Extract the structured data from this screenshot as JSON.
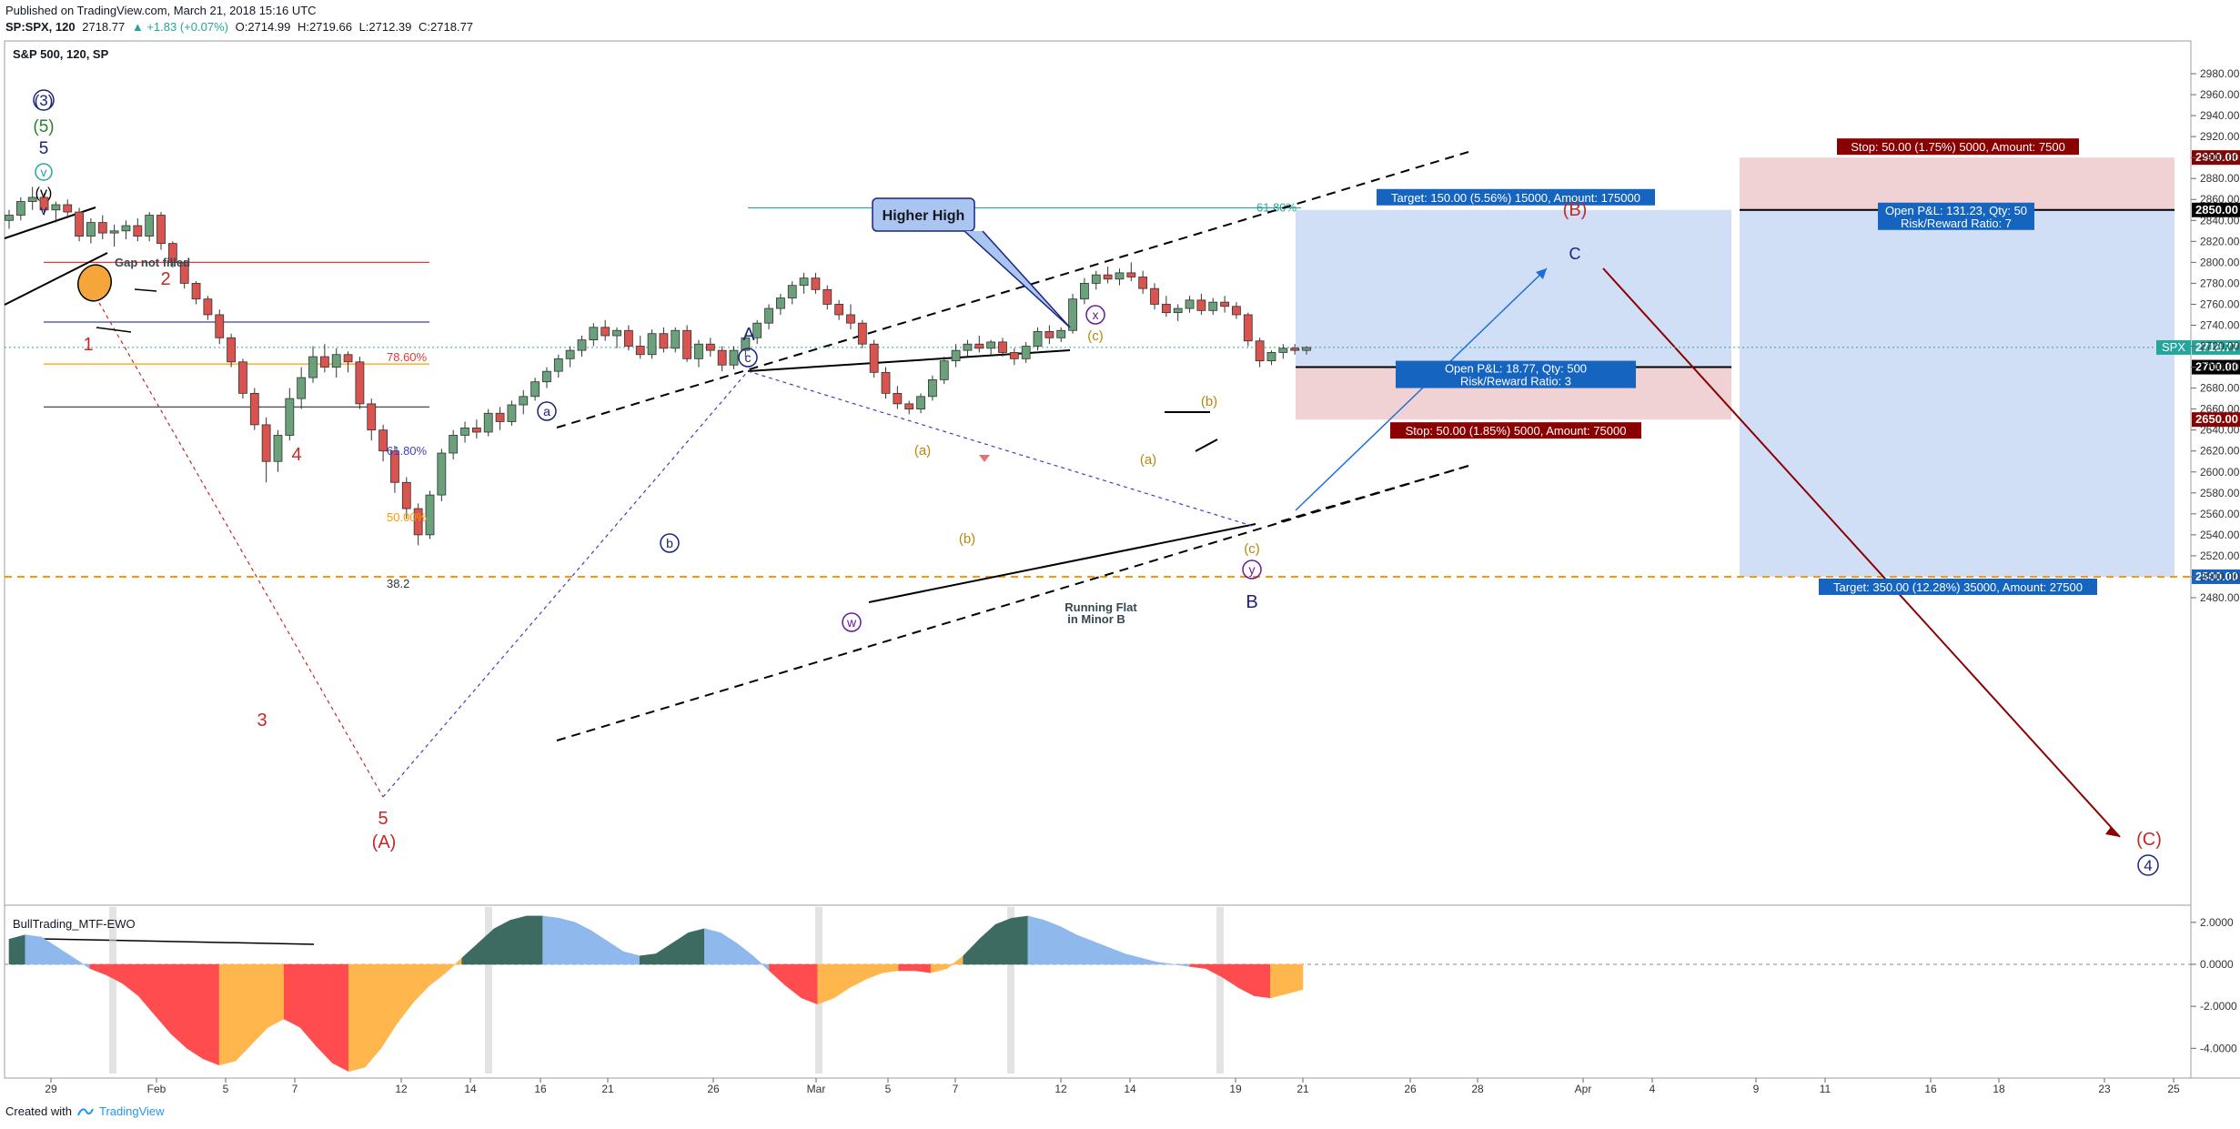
{
  "header": {
    "published": "Published on TradingView.com, March 21, 2018 15:16 UTC",
    "symbol": "SP:SPX, 120",
    "change": "2718.77",
    "change_delta": "▲ +1.83 (+0.07%)",
    "open": "O:2714.99",
    "high": "H:2719.66",
    "low": "L:2712.39",
    "close": "C:2718.77"
  },
  "chart_title": "S&P 500, 120, SP",
  "footer": {
    "created_with": "Created with",
    "brand": "TradingView"
  },
  "price_axis": {
    "ticks": [
      "2980.00",
      "2960.00",
      "2940.00",
      "2920.00",
      "2900.00",
      "2880.00",
      "2860.00",
      "2840.00",
      "2820.00",
      "2800.00",
      "2780.00",
      "2760.00",
      "2740.00",
      "2720.00",
      "2700.00",
      "2680.00",
      "2660.00",
      "2640.00",
      "2620.00",
      "2600.00",
      "2580.00",
      "2560.00",
      "2540.00",
      "2520.00",
      "2500.00",
      "2480.00"
    ],
    "highlights": [
      {
        "label": "2900.00",
        "price": 2900,
        "color": "#8b0000"
      },
      {
        "label": "2850.00",
        "price": 2850,
        "color": "#000000"
      },
      {
        "label": "SPX",
        "value": "2718.77",
        "price": 2718.77,
        "color": "#26a69a"
      },
      {
        "label": "2700.00",
        "price": 2700,
        "color": "#000000"
      },
      {
        "label": "2650.00",
        "price": 2650,
        "color": "#8b0000"
      },
      {
        "label": "2500.00",
        "price": 2500,
        "color": "#1565c0"
      }
    ]
  },
  "time_axis": [
    "29",
    "Feb",
    "5",
    "7",
    "12",
    "14",
    "16",
    "21",
    "26",
    "Mar",
    "5",
    "7",
    "12",
    "14",
    "19",
    "21",
    "26",
    "28",
    "Apr",
    "4",
    "9",
    "11",
    "16",
    "18",
    "23",
    "25"
  ],
  "indicator": {
    "name": "BullTrading_MTF-EWO",
    "ticks": [
      "2.0000",
      "0.0000",
      "-2.0000",
      "-4.0000"
    ]
  },
  "chart_data": {
    "type": "candlestick",
    "title": "S&P 500, 120, SP",
    "ylim": [
      2470,
      2990
    ],
    "last_price": 2718.77,
    "candles_ohlc": [
      [
        2840,
        2850,
        2832,
        2845
      ],
      [
        2845,
        2862,
        2840,
        2858
      ],
      [
        2858,
        2872,
        2850,
        2862
      ],
      [
        2862,
        2866,
        2845,
        2850
      ],
      [
        2850,
        2858,
        2838,
        2855
      ],
      [
        2855,
        2860,
        2842,
        2848
      ],
      [
        2848,
        2852,
        2820,
        2825
      ],
      [
        2825,
        2842,
        2818,
        2838
      ],
      [
        2838,
        2845,
        2822,
        2828
      ],
      [
        2828,
        2836,
        2815,
        2830
      ],
      [
        2830,
        2840,
        2822,
        2835
      ],
      [
        2835,
        2842,
        2820,
        2825
      ],
      [
        2825,
        2848,
        2820,
        2845
      ],
      [
        2845,
        2848,
        2812,
        2818
      ],
      [
        2818,
        2820,
        2795,
        2800
      ],
      [
        2800,
        2802,
        2775,
        2780
      ],
      [
        2780,
        2782,
        2760,
        2765
      ],
      [
        2765,
        2768,
        2745,
        2750
      ],
      [
        2750,
        2755,
        2722,
        2728
      ],
      [
        2728,
        2732,
        2700,
        2705
      ],
      [
        2705,
        2708,
        2670,
        2675
      ],
      [
        2675,
        2680,
        2640,
        2645
      ],
      [
        2645,
        2652,
        2590,
        2610
      ],
      [
        2610,
        2640,
        2600,
        2635
      ],
      [
        2635,
        2680,
        2630,
        2670
      ],
      [
        2670,
        2700,
        2660,
        2690
      ],
      [
        2690,
        2720,
        2685,
        2710
      ],
      [
        2710,
        2722,
        2695,
        2700
      ],
      [
        2700,
        2718,
        2690,
        2712
      ],
      [
        2712,
        2715,
        2695,
        2705
      ],
      [
        2705,
        2710,
        2660,
        2665
      ],
      [
        2665,
        2670,
        2630,
        2640
      ],
      [
        2640,
        2645,
        2610,
        2620
      ],
      [
        2620,
        2625,
        2580,
        2590
      ],
      [
        2590,
        2595,
        2555,
        2565
      ],
      [
        2565,
        2570,
        2530,
        2540
      ],
      [
        2540,
        2582,
        2536,
        2578
      ],
      [
        2578,
        2622,
        2572,
        2618
      ],
      [
        2618,
        2640,
        2612,
        2635
      ],
      [
        2635,
        2648,
        2628,
        2642
      ],
      [
        2642,
        2650,
        2632,
        2638
      ],
      [
        2638,
        2660,
        2634,
        2656
      ],
      [
        2656,
        2662,
        2640,
        2648
      ],
      [
        2648,
        2668,
        2644,
        2664
      ],
      [
        2664,
        2678,
        2655,
        2672
      ],
      [
        2672,
        2690,
        2668,
        2686
      ],
      [
        2686,
        2700,
        2680,
        2696
      ],
      [
        2696,
        2712,
        2690,
        2708
      ],
      [
        2708,
        2720,
        2700,
        2716
      ],
      [
        2716,
        2730,
        2710,
        2726
      ],
      [
        2726,
        2742,
        2720,
        2738
      ],
      [
        2738,
        2745,
        2725,
        2730
      ],
      [
        2730,
        2738,
        2718,
        2735
      ],
      [
        2735,
        2740,
        2716,
        2720
      ],
      [
        2720,
        2730,
        2708,
        2712
      ],
      [
        2712,
        2736,
        2708,
        2732
      ],
      [
        2732,
        2738,
        2714,
        2718
      ],
      [
        2718,
        2738,
        2714,
        2735
      ],
      [
        2735,
        2740,
        2705,
        2708
      ],
      [
        2708,
        2726,
        2700,
        2722
      ],
      [
        2722,
        2728,
        2710,
        2716
      ],
      [
        2716,
        2720,
        2696,
        2702
      ],
      [
        2702,
        2720,
        2698,
        2716
      ],
      [
        2716,
        2732,
        2710,
        2728
      ],
      [
        2728,
        2745,
        2722,
        2742
      ],
      [
        2742,
        2760,
        2736,
        2756
      ],
      [
        2756,
        2770,
        2750,
        2766
      ],
      [
        2766,
        2782,
        2760,
        2778
      ],
      [
        2778,
        2790,
        2770,
        2785
      ],
      [
        2785,
        2790,
        2770,
        2774
      ],
      [
        2774,
        2778,
        2755,
        2760
      ],
      [
        2760,
        2764,
        2745,
        2750
      ],
      [
        2750,
        2760,
        2736,
        2742
      ],
      [
        2742,
        2745,
        2718,
        2722
      ],
      [
        2722,
        2726,
        2690,
        2695
      ],
      [
        2695,
        2700,
        2670,
        2675
      ],
      [
        2675,
        2682,
        2660,
        2665
      ],
      [
        2665,
        2668,
        2655,
        2660
      ],
      [
        2660,
        2675,
        2656,
        2672
      ],
      [
        2672,
        2692,
        2668,
        2688
      ],
      [
        2688,
        2710,
        2684,
        2706
      ],
      [
        2706,
        2722,
        2700,
        2716
      ],
      [
        2716,
        2726,
        2710,
        2722
      ],
      [
        2722,
        2730,
        2714,
        2718
      ],
      [
        2718,
        2726,
        2712,
        2724
      ],
      [
        2724,
        2728,
        2710,
        2714
      ],
      [
        2714,
        2718,
        2702,
        2708
      ],
      [
        2708,
        2724,
        2704,
        2720
      ],
      [
        2720,
        2738,
        2716,
        2734
      ],
      [
        2734,
        2740,
        2722,
        2728
      ],
      [
        2728,
        2738,
        2724,
        2735
      ],
      [
        2735,
        2770,
        2732,
        2765
      ],
      [
        2765,
        2785,
        2760,
        2780
      ],
      [
        2780,
        2792,
        2774,
        2788
      ],
      [
        2788,
        2796,
        2780,
        2784
      ],
      [
        2784,
        2794,
        2778,
        2790
      ],
      [
        2790,
        2800,
        2782,
        2786
      ],
      [
        2786,
        2792,
        2770,
        2775
      ],
      [
        2775,
        2780,
        2755,
        2760
      ],
      [
        2760,
        2768,
        2748,
        2752
      ],
      [
        2752,
        2760,
        2744,
        2756
      ],
      [
        2756,
        2768,
        2752,
        2764
      ],
      [
        2764,
        2770,
        2750,
        2754
      ],
      [
        2754,
        2766,
        2750,
        2762
      ],
      [
        2762,
        2768,
        2752,
        2758
      ],
      [
        2758,
        2762,
        2746,
        2750
      ],
      [
        2750,
        2752,
        2720,
        2725
      ],
      [
        2725,
        2728,
        2700,
        2706
      ],
      [
        2706,
        2716,
        2702,
        2714
      ],
      [
        2714,
        2722,
        2708,
        2718
      ],
      [
        2718,
        2722,
        2712,
        2716
      ],
      [
        2716,
        2720,
        2712,
        2718.77
      ]
    ],
    "annotations": [
      "(3)",
      "(5)",
      "5",
      "(v)",
      "v",
      "1",
      "2",
      "3",
      "4",
      "5",
      "(A)",
      "Gap not filled",
      "78.60%",
      "61.80%",
      "50.00%",
      "38.2",
      "A",
      "c",
      "a",
      "b",
      "w",
      "x",
      "y",
      "B",
      "(a)",
      "(b)",
      "(c)",
      "Higher High",
      "Running Flat",
      "in Minor B",
      "(B)",
      "C",
      "(C)",
      "4"
    ],
    "fibonacci": [
      {
        "level": "78.60%",
        "price": 2800,
        "color": "#e53935"
      },
      {
        "level": "61.80%",
        "price": 2743,
        "color": "#3f3fbf"
      },
      {
        "level": "50.00%",
        "price": 2703,
        "color": "#ff9800"
      },
      {
        "level": "38.2",
        "price": 2662,
        "color": "#333333"
      },
      {
        "level": "61.80%",
        "price": 2852,
        "color": "#26a69a"
      }
    ],
    "long_position": {
      "entry": 2700,
      "target": 2850,
      "stop": 2650,
      "target_label": "Target: 150.00 (5.56%) 15000, Amount: 175000",
      "pnl_label": "Open P&L: 18.77, Qty: 500",
      "rr_label": "Risk/Reward Ratio: 3",
      "stop_label": "Stop: 50.00 (1.85%) 5000, Amount: 75000"
    },
    "short_position": {
      "entry": 2850,
      "target": 2500,
      "stop": 2900,
      "stop_label": "Stop: 50.00 (1.75%) 5000, Amount: 7500",
      "pnl_label": "Open P&L: 131.23, Qty: 50",
      "rr_label": "Risk/Reward Ratio: 7",
      "target_label": "Target: 350.00 (12.28%) 35000, Amount: 27500"
    },
    "support_level": 2500,
    "indicator_series_name": "BullTrading_MTF-EWO",
    "indicator_ylim": [
      -5.2,
      2.6
    ],
    "indicator_values": [
      1.2,
      1.4,
      1.3,
      0.8,
      0.3,
      -0.2,
      -0.5,
      -0.9,
      -1.5,
      -2.4,
      -3.3,
      -4.0,
      -4.5,
      -4.8,
      -4.6,
      -3.8,
      -3.0,
      -2.6,
      -3.0,
      -3.9,
      -4.7,
      -5.1,
      -4.9,
      -4.0,
      -2.8,
      -1.8,
      -1.0,
      -0.4,
      0.3,
      1.0,
      1.7,
      2.1,
      2.3,
      2.3,
      2.2,
      2.0,
      1.6,
      1.1,
      0.6,
      0.4,
      0.5,
      1.0,
      1.5,
      1.7,
      1.5,
      1.0,
      0.4,
      -0.3,
      -1.0,
      -1.6,
      -1.9,
      -1.6,
      -1.1,
      -0.7,
      -0.4,
      -0.3,
      -0.3,
      -0.4,
      -0.2,
      0.4,
      1.2,
      1.9,
      2.2,
      2.3,
      2.1,
      1.8,
      1.4,
      1.1,
      0.8,
      0.5,
      0.3,
      0.1,
      0.0,
      -0.1,
      -0.2,
      -0.6,
      -1.1,
      -1.5,
      -1.6,
      -1.4,
      -1.2
    ],
    "indicator_colors": {
      "strong_pos": "#3d6b61",
      "weak_pos": "#8fb8ec",
      "strong_neg": "#ff4d4f",
      "weak_neg": "#ffb74d"
    }
  }
}
